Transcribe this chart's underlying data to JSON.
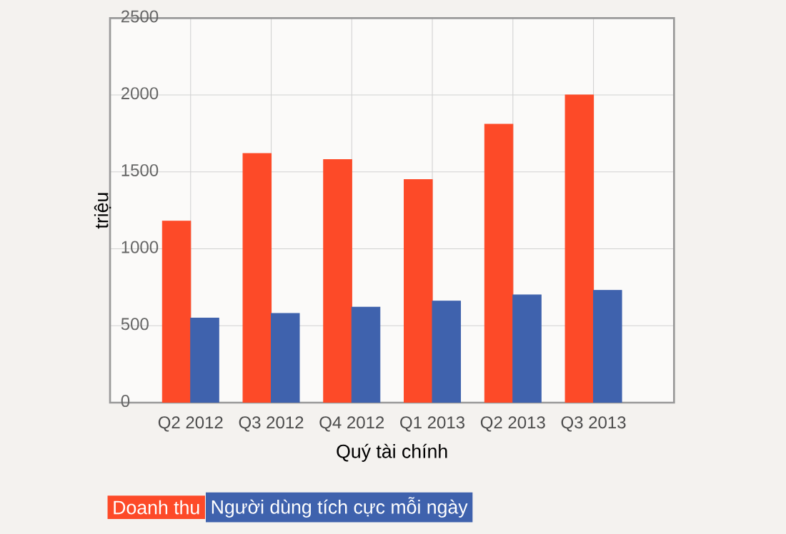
{
  "chart_data": {
    "type": "bar",
    "xlabel": "Quý tài chính",
    "ylabel": "triệu",
    "categories": [
      "Q2 2012",
      "Q3 2012",
      "Q4 2012",
      "Q1 2013",
      "Q2 2013",
      "Q3 2013"
    ],
    "series": [
      {
        "name": "Doanh thu",
        "color": "#fd4a28",
        "values": [
          1180,
          1620,
          1580,
          1450,
          1810,
          2000
        ]
      },
      {
        "name": "Người dùng tích cực mỗi ngày",
        "color": "#3f62ad",
        "values": [
          550,
          580,
          620,
          660,
          700,
          730
        ]
      }
    ],
    "ylim": [
      0,
      2500
    ],
    "yticks": [
      0,
      500,
      1000,
      1500,
      2000,
      2500
    ],
    "grid": true,
    "legend": "bottom"
  }
}
